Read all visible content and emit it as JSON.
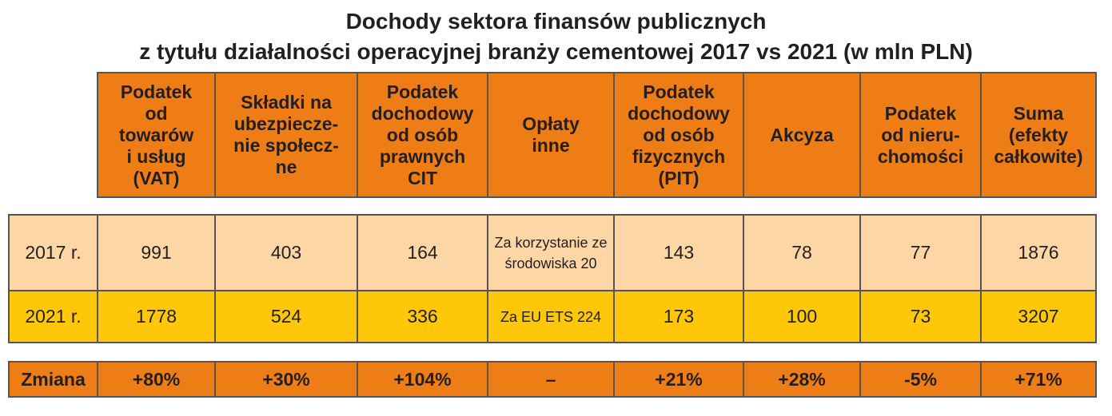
{
  "title": {
    "line1": "Dochody sektora finansów publicznych",
    "line2": "z tytułu działalności operacyjnej branży cementowej 2017 vs 2021 (w mln PLN)"
  },
  "colors": {
    "header_orange": "#ef7d15",
    "row_2017_peach": "#fdd6a6",
    "row_2021_yellow": "#ffc709",
    "border": "#555555"
  },
  "chart_data": {
    "type": "table",
    "title": "Dochody sektora finansów publicznych z tytułu działalności operacyjnej branży cementowej 2017 vs 2021 (w mln PLN)",
    "columns": [
      "Podatek od towarów i usług (VAT)",
      "Składki na ubezpiecze-nie społecz-ne",
      "Podatek dochodowy od osób prawnych CIT",
      "Opłaty inne",
      "Podatek dochodowy od osób fizycznych (PIT)",
      "Akcyza",
      "Podatek od nieru-chomości",
      "Suma (efekty całkowite)"
    ],
    "rows": [
      {
        "label": "2017 r.",
        "cells": [
          "991",
          "403",
          "164",
          "Za korzystanie ze środowiska 20",
          "143",
          "78",
          "77",
          "1876"
        ]
      },
      {
        "label": "2021 r.",
        "cells": [
          "1778",
          "524",
          "336",
          "Za EU ETS 224",
          "173",
          "100",
          "73",
          "3207"
        ]
      },
      {
        "label": "Zmiana",
        "cells": [
          "+80%",
          "+30%",
          "+104%",
          "–",
          "+21%",
          "+28%",
          "-5%",
          "+71%"
        ]
      }
    ]
  }
}
